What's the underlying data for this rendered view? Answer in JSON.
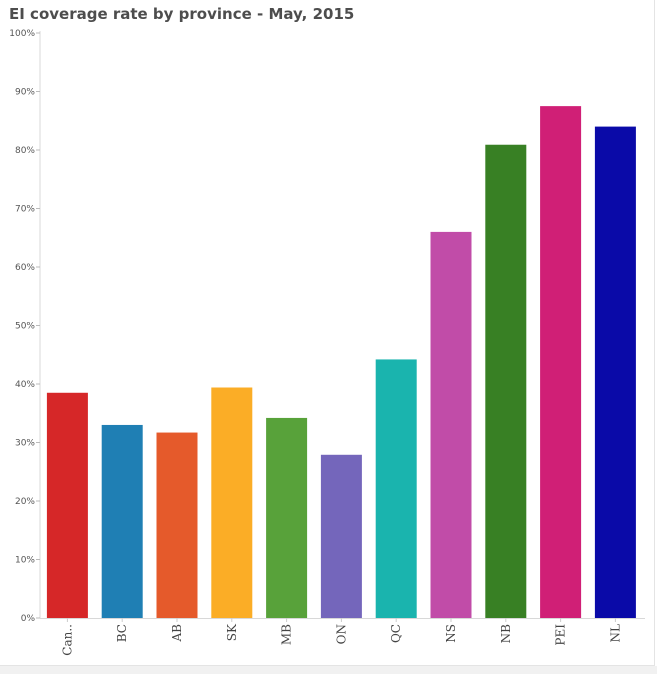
{
  "chart_data": {
    "type": "bar",
    "title": "EI coverage rate by province - May, 2015",
    "xlabel": "",
    "ylabel": "",
    "ylim": [
      0,
      100
    ],
    "yticks": [
      0,
      10,
      20,
      30,
      40,
      50,
      60,
      70,
      80,
      90,
      100
    ],
    "ytick_labels": [
      "0%",
      "10%",
      "20%",
      "30%",
      "40%",
      "50%",
      "60%",
      "70%",
      "80%",
      "90%",
      "100%"
    ],
    "categories": [
      "Can..",
      "BC",
      "AB",
      "SK",
      "MB",
      "ON",
      "QC",
      "NS",
      "NB",
      "PEI",
      "NL"
    ],
    "values": [
      38.5,
      33,
      31.7,
      39.4,
      34.2,
      27.9,
      44.2,
      66,
      80.9,
      87.5,
      84
    ],
    "colors": [
      "#d62728",
      "#1f7fb4",
      "#e55a2b",
      "#fbad26",
      "#58a23a",
      "#7466bb",
      "#1ab4ae",
      "#c14ca8",
      "#388024",
      "#d01f76",
      "#0a0aa8"
    ],
    "grid": false,
    "legend": "none"
  }
}
